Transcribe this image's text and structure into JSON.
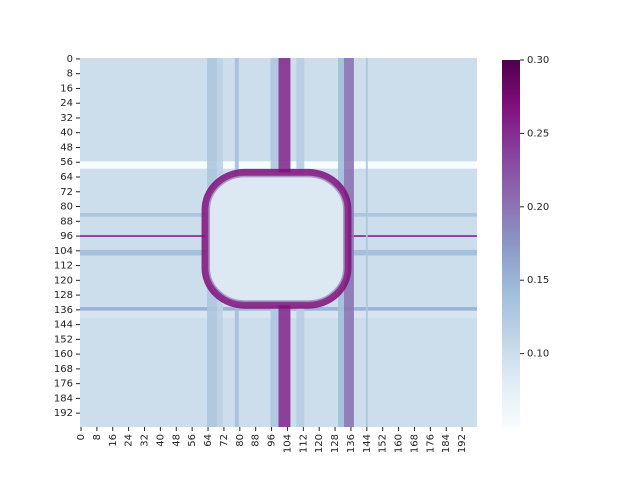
{
  "chart_data": {
    "type": "heatmap",
    "title": "",
    "xlabel": "",
    "ylabel": "",
    "grid_size": 200,
    "x_ticks": [
      "0",
      "8",
      "16",
      "24",
      "32",
      "40",
      "48",
      "56",
      "64",
      "72",
      "80",
      "88",
      "96",
      "104",
      "112",
      "120",
      "128",
      "136",
      "144",
      "152",
      "160",
      "168",
      "176",
      "184",
      "192"
    ],
    "y_ticks": [
      "0",
      "8",
      "16",
      "24",
      "32",
      "40",
      "48",
      "56",
      "64",
      "72",
      "80",
      "88",
      "96",
      "104",
      "112",
      "120",
      "128",
      "136",
      "144",
      "152",
      "160",
      "168",
      "176",
      "184",
      "192"
    ],
    "colorbar": {
      "min": 0.05,
      "max": 0.3,
      "ticks": [
        "0.10",
        "0.15",
        "0.20",
        "0.25",
        "0.30"
      ],
      "tick_values": [
        0.1,
        0.15,
        0.2,
        0.25,
        0.3
      ],
      "colors": [
        "#f7fcfd",
        "#e0ecf4",
        "#bfd3e6",
        "#9ebcda",
        "#8c96c6",
        "#8c6bb1",
        "#88419d",
        "#810f7c",
        "#4d004b"
      ]
    },
    "background_value": 0.1,
    "ring": {
      "center_x": 99,
      "center_y": 98,
      "radius_x": 36,
      "radius_y": 36,
      "value": 0.27,
      "inner_value": 0.085
    },
    "vertical_bands": [
      {
        "x0": 64,
        "x1": 69,
        "value": 0.13
      },
      {
        "x0": 69,
        "x1": 72,
        "value": 0.115
      },
      {
        "x0": 78,
        "x1": 80,
        "value": 0.14
      },
      {
        "x0": 96,
        "x1": 100,
        "value": 0.13
      },
      {
        "x0": 100,
        "x1": 106,
        "value": 0.25
      },
      {
        "x0": 109,
        "x1": 113,
        "value": 0.12
      },
      {
        "x0": 130,
        "x1": 133,
        "value": 0.14
      },
      {
        "x0": 133,
        "x1": 138,
        "value": 0.2
      },
      {
        "x0": 144,
        "x1": 145,
        "value": 0.13
      }
    ],
    "horizontal_bands": [
      {
        "y0": 56,
        "y1": 60,
        "value": 0.05
      },
      {
        "y0": 84,
        "y1": 86,
        "value": 0.13
      },
      {
        "y0": 96,
        "y1": 97,
        "value": 0.24
      },
      {
        "y0": 104,
        "y1": 107,
        "value": 0.14
      },
      {
        "y0": 135,
        "y1": 137,
        "value": 0.15
      },
      {
        "y0": 137,
        "y1": 141,
        "value": 0.09
      }
    ]
  }
}
